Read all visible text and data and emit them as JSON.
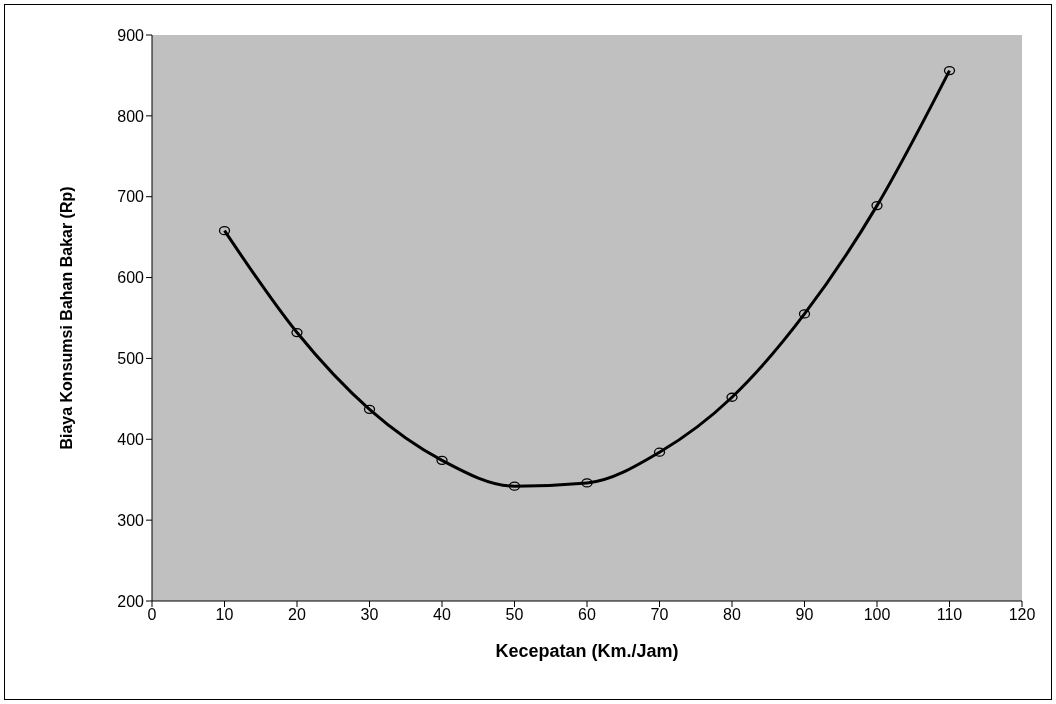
{
  "chart_data": {
    "type": "line",
    "xlabel": "Kecepatan (Km./Jam)",
    "ylabel": "Biaya Konsumsi Bahan Bakar (Rp)",
    "x": [
      10,
      20,
      30,
      40,
      50,
      60,
      70,
      80,
      90,
      100,
      110
    ],
    "series": [
      {
        "color": "#000000",
        "values": [
          658,
          532,
          437,
          374,
          342,
          346,
          384,
          452,
          555,
          689,
          856
        ]
      }
    ],
    "xlim": [
      0,
      120
    ],
    "xticks": [
      0,
      10,
      20,
      30,
      40,
      50,
      60,
      70,
      80,
      90,
      100,
      110,
      120
    ],
    "ylim": [
      200,
      900
    ],
    "yticks": [
      200,
      300,
      400,
      500,
      600,
      700,
      800,
      900
    ],
    "grid": false,
    "marker": "circle",
    "line_style": "solid"
  }
}
